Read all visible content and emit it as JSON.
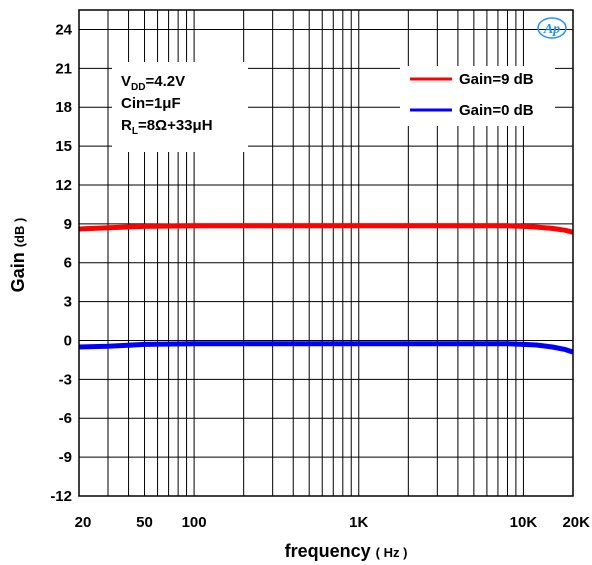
{
  "chart_data": {
    "type": "line",
    "xlabel": "frequency",
    "xlabel_unit": "( Hz )",
    "ylabel": "Gain",
    "ylabel_unit": "(dB )",
    "xscale": "log",
    "xlim": [
      20,
      20000
    ],
    "ylim": [
      -12,
      25.5
    ],
    "grid": true,
    "xticks": [
      {
        "value": 20,
        "label": "20"
      },
      {
        "value": 50,
        "label": "50"
      },
      {
        "value": 100,
        "label": "100"
      },
      {
        "value": 1000,
        "label": "1K"
      },
      {
        "value": 10000,
        "label": "10K"
      },
      {
        "value": 20000,
        "label": "20K"
      }
    ],
    "yticks": [
      24,
      21,
      18,
      15,
      12,
      9,
      6,
      3,
      0,
      -3,
      -6,
      -9,
      -12
    ],
    "legend_position": "top-right",
    "annotation": {
      "vdd_label": "V",
      "vdd_sub": "DD",
      "vdd_value": "=4.2V",
      "cin": "Cin=1μF",
      "rl_label": "R",
      "rl_sub": "L",
      "rl_value": "=8Ω+33μH"
    },
    "logo_text": "Ap",
    "series": [
      {
        "name": "Gain=9 dB",
        "color": "#ff0000",
        "x": [
          20,
          30,
          50,
          100,
          200,
          500,
          1000,
          2000,
          5000,
          8000,
          10000,
          12000,
          15000,
          18000,
          20000
        ],
        "y": [
          8.6,
          8.7,
          8.8,
          8.85,
          8.85,
          8.85,
          8.85,
          8.85,
          8.85,
          8.85,
          8.8,
          8.75,
          8.65,
          8.5,
          8.35
        ]
      },
      {
        "name": "Gain=0 dB",
        "color": "#0000ff",
        "x": [
          20,
          30,
          50,
          100,
          200,
          500,
          1000,
          2000,
          5000,
          8000,
          10000,
          12000,
          15000,
          18000,
          20000
        ],
        "y": [
          -0.5,
          -0.45,
          -0.3,
          -0.25,
          -0.25,
          -0.25,
          -0.25,
          -0.25,
          -0.25,
          -0.25,
          -0.3,
          -0.35,
          -0.5,
          -0.7,
          -0.9
        ]
      }
    ]
  }
}
